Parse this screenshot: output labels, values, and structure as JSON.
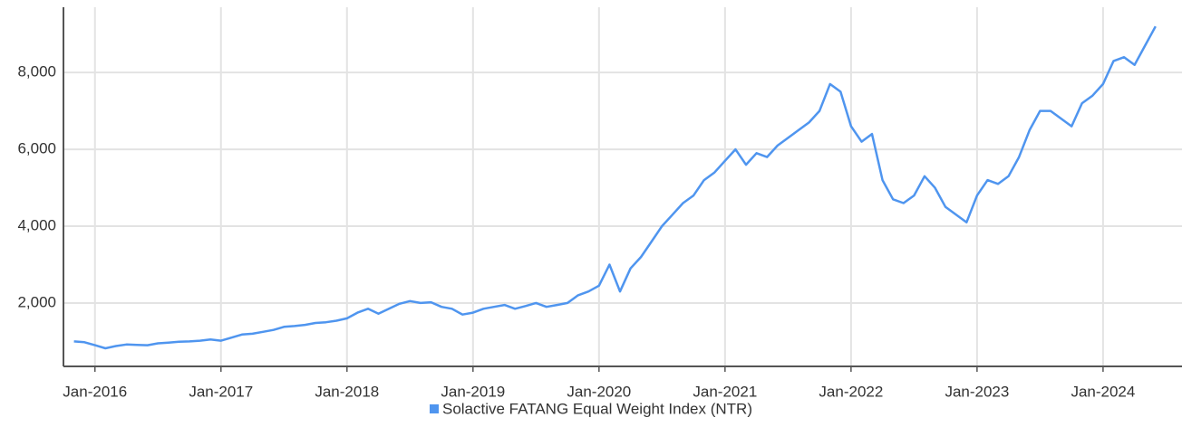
{
  "chart_data": {
    "type": "line",
    "x": [
      "2015-11",
      "2015-12",
      "2016-01",
      "2016-02",
      "2016-03",
      "2016-04",
      "2016-05",
      "2016-06",
      "2016-07",
      "2016-08",
      "2016-09",
      "2016-10",
      "2016-11",
      "2016-12",
      "2017-01",
      "2017-02",
      "2017-03",
      "2017-04",
      "2017-05",
      "2017-06",
      "2017-07",
      "2017-08",
      "2017-09",
      "2017-10",
      "2017-11",
      "2017-12",
      "2018-01",
      "2018-02",
      "2018-03",
      "2018-04",
      "2018-05",
      "2018-06",
      "2018-07",
      "2018-08",
      "2018-09",
      "2018-10",
      "2018-11",
      "2018-12",
      "2019-01",
      "2019-02",
      "2019-03",
      "2019-04",
      "2019-05",
      "2019-06",
      "2019-07",
      "2019-08",
      "2019-09",
      "2019-10",
      "2019-11",
      "2019-12",
      "2020-01",
      "2020-02",
      "2020-03",
      "2020-04",
      "2020-05",
      "2020-06",
      "2020-07",
      "2020-08",
      "2020-09",
      "2020-10",
      "2020-11",
      "2020-12",
      "2021-01",
      "2021-02",
      "2021-03",
      "2021-04",
      "2021-05",
      "2021-06",
      "2021-07",
      "2021-08",
      "2021-09",
      "2021-10",
      "2021-11",
      "2021-12",
      "2022-01",
      "2022-02",
      "2022-03",
      "2022-04",
      "2022-05",
      "2022-06",
      "2022-07",
      "2022-08",
      "2022-09",
      "2022-10",
      "2022-11",
      "2022-12",
      "2023-01",
      "2023-02",
      "2023-03",
      "2023-04",
      "2023-05",
      "2023-06",
      "2023-07",
      "2023-08",
      "2023-09",
      "2023-10",
      "2023-11",
      "2023-12",
      "2024-01",
      "2024-02",
      "2024-03",
      "2024-04",
      "2024-05",
      "2024-06"
    ],
    "series": [
      {
        "name": "Solactive FATANG Equal Weight Index (NTR)",
        "color": "#4f95ef",
        "values": [
          1000,
          980,
          900,
          820,
          880,
          920,
          910,
          900,
          950,
          970,
          990,
          1000,
          1020,
          1050,
          1020,
          1100,
          1180,
          1200,
          1250,
          1300,
          1380,
          1400,
          1430,
          1480,
          1500,
          1540,
          1600,
          1750,
          1850,
          1720,
          1850,
          1980,
          2050,
          2000,
          2020,
          1900,
          1850,
          1700,
          1750,
          1850,
          1900,
          1950,
          1850,
          1920,
          2000,
          1900,
          1950,
          2000,
          2200,
          2300,
          2450,
          3000,
          2300,
          2900,
          3200,
          3600,
          4000,
          4300,
          4600,
          4800,
          5200,
          5400,
          5700,
          6000,
          5600,
          5900,
          5800,
          6100,
          6300,
          6500,
          6700,
          7000,
          7700,
          7500,
          6600,
          6200,
          6400,
          5200,
          4700,
          4600,
          4800,
          5300,
          5000,
          4500,
          4300,
          4100,
          4800,
          5200,
          5100,
          5300,
          5800,
          6500,
          7000,
          7000,
          6800,
          6600,
          7200,
          7400,
          7700,
          8300,
          8400,
          8200,
          8700,
          9200
        ]
      }
    ],
    "xlim": [
      "2015-10",
      "2024-08"
    ],
    "xticks": [
      {
        "value": "2016-01",
        "label": "Jan-2016"
      },
      {
        "value": "2017-01",
        "label": "Jan-2017"
      },
      {
        "value": "2018-01",
        "label": "Jan-2018"
      },
      {
        "value": "2019-01",
        "label": "Jan-2019"
      },
      {
        "value": "2020-01",
        "label": "Jan-2020"
      },
      {
        "value": "2021-01",
        "label": "Jan-2021"
      },
      {
        "value": "2022-01",
        "label": "Jan-2022"
      },
      {
        "value": "2023-01",
        "label": "Jan-2023"
      },
      {
        "value": "2024-01",
        "label": "Jan-2024"
      }
    ],
    "ylim": [
      350,
      9700
    ],
    "yticks": [
      {
        "value": 2000,
        "label": "2,000"
      },
      {
        "value": 4000,
        "label": "4,000"
      },
      {
        "value": 6000,
        "label": "6,000"
      },
      {
        "value": 8000,
        "label": "8,000"
      }
    ],
    "grid": true,
    "legend": "bottom"
  }
}
